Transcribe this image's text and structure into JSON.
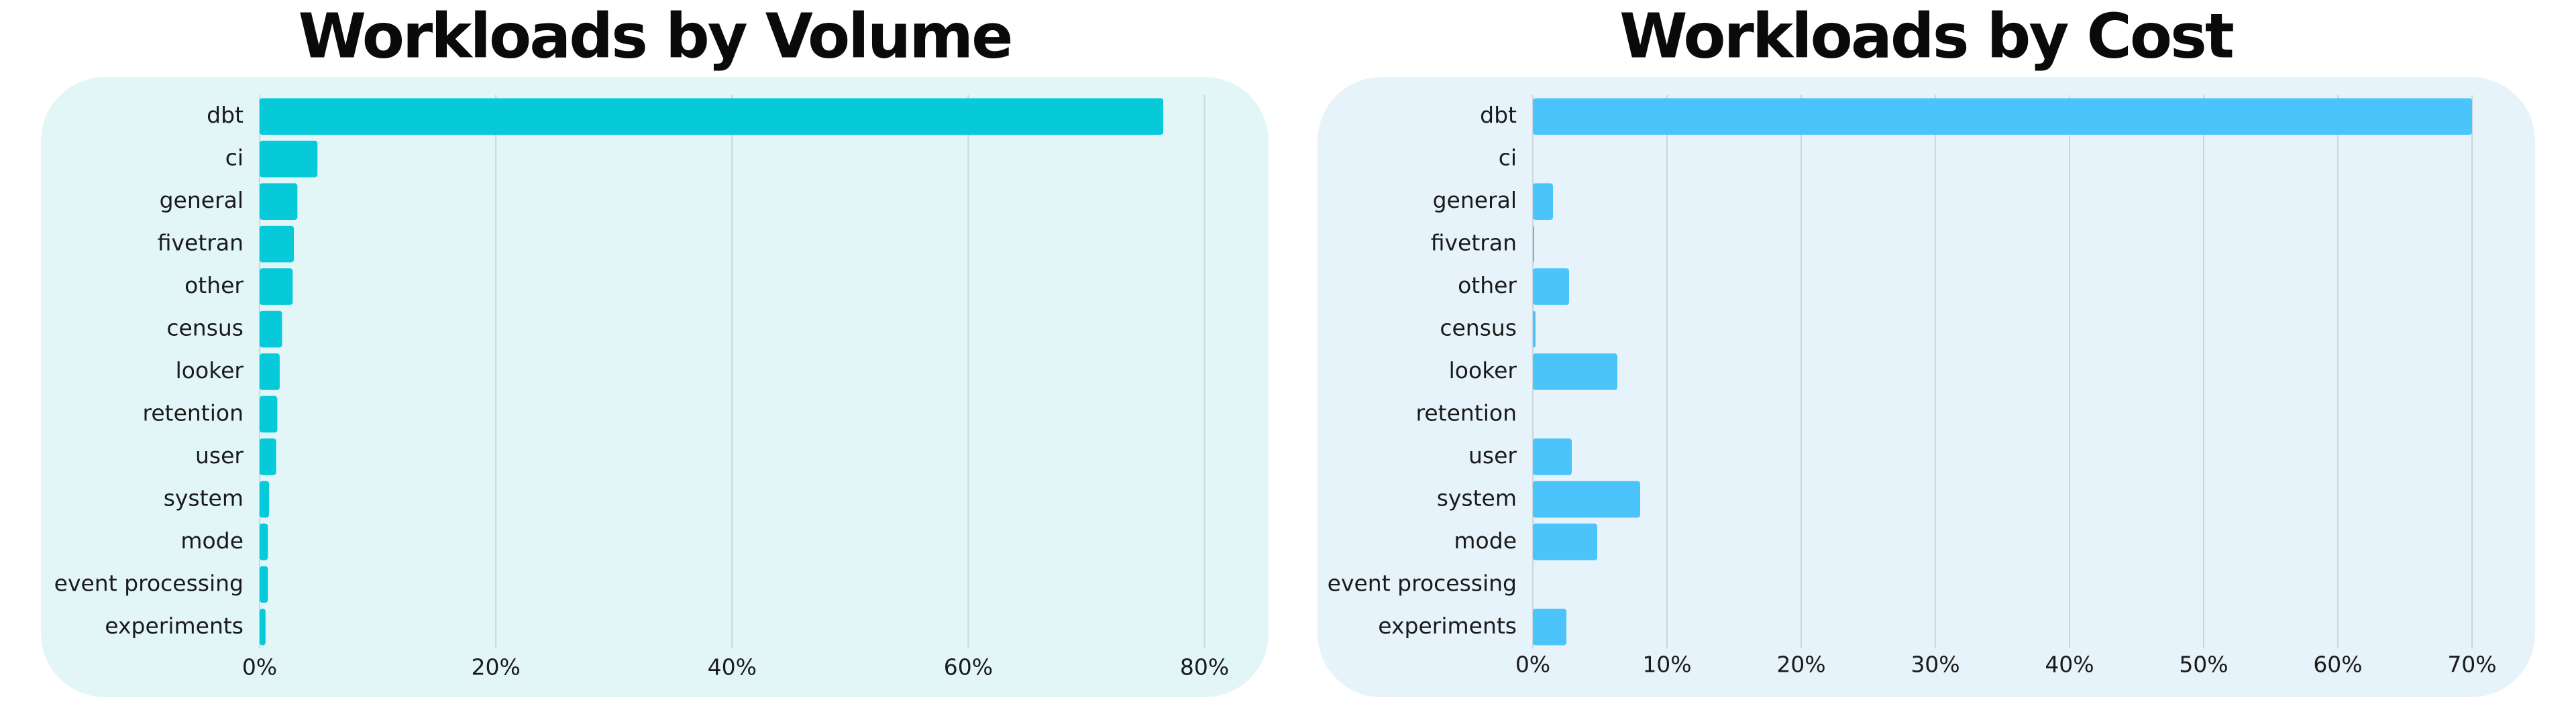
{
  "chart_data": [
    {
      "type": "barh",
      "title": "Workloads by Volume",
      "categories": [
        "dbt",
        "ci",
        "general",
        "fivetran",
        "other",
        "census",
        "looker",
        "retention",
        "user",
        "system",
        "mode",
        "event processing",
        "experiments"
      ],
      "values": [
        76.5,
        4.9,
        3.2,
        2.9,
        2.8,
        1.9,
        1.7,
        1.5,
        1.4,
        0.8,
        0.7,
        0.7,
        0.5
      ],
      "color": "#06c9d9",
      "xlim": [
        0,
        84
      ],
      "xticks": [
        {
          "value": 0,
          "label": "0%"
        },
        {
          "value": 20,
          "label": "20%"
        },
        {
          "value": 40,
          "label": "40%"
        },
        {
          "value": 60,
          "label": "60%"
        },
        {
          "value": 80,
          "label": "80%"
        }
      ],
      "grid": true
    },
    {
      "type": "barh",
      "title": "Workloads by Cost",
      "categories": [
        "dbt",
        "ci",
        "general",
        "fivetran",
        "other",
        "census",
        "looker",
        "retention",
        "user",
        "system",
        "mode",
        "event processing",
        "experiments"
      ],
      "values": [
        70,
        0,
        1.5,
        0.1,
        2.7,
        0.2,
        6.3,
        0,
        2.9,
        8.0,
        4.8,
        0,
        2.5
      ],
      "color": "#4bc4fb",
      "xlim": [
        0,
        71
      ],
      "xticks": [
        {
          "value": 0,
          "label": "0%"
        },
        {
          "value": 10,
          "label": "10%"
        },
        {
          "value": 20,
          "label": "20%"
        },
        {
          "value": 30,
          "label": "30%"
        },
        {
          "value": 40,
          "label": "40%"
        },
        {
          "value": 50,
          "label": "50%"
        },
        {
          "value": 60,
          "label": "60%"
        },
        {
          "value": 70,
          "label": "70%"
        }
      ],
      "grid": true
    }
  ]
}
